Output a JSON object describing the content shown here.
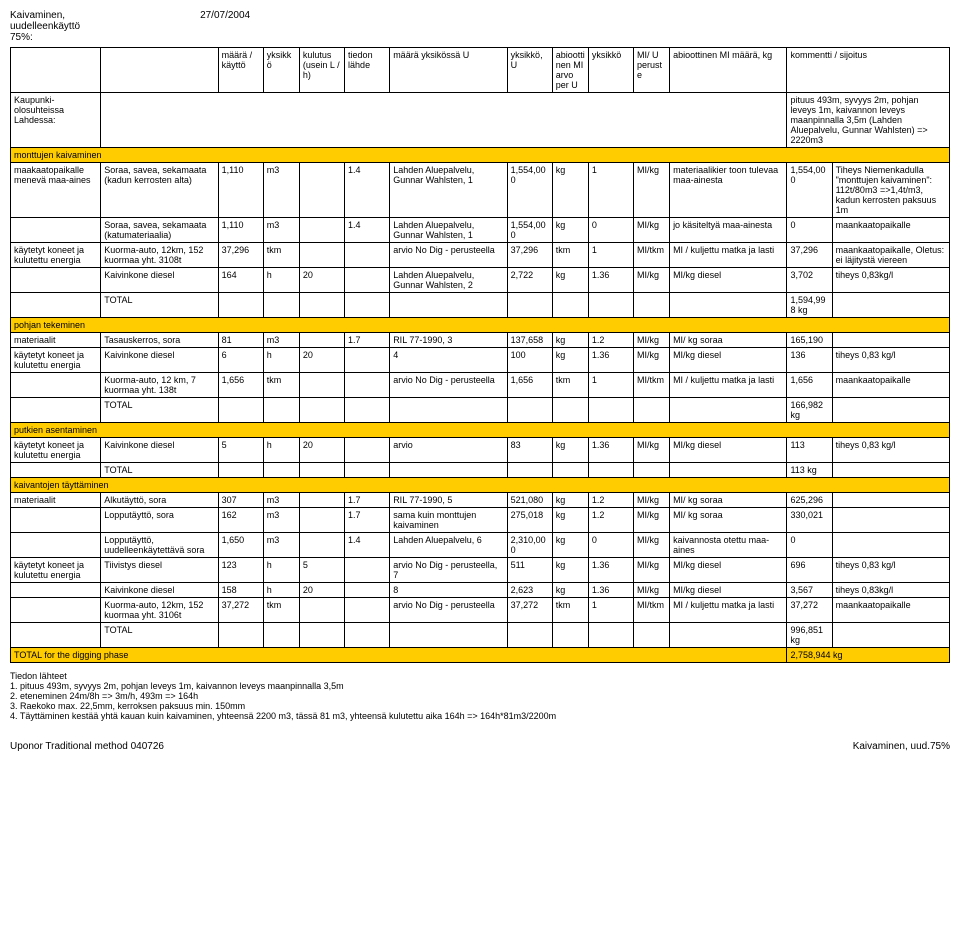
{
  "header": {
    "title_line1": "Kaivaminen,",
    "title_line2": "uudelleenkäyttö",
    "title_line3": "75%:",
    "date": "27/07/2004",
    "subtitle_line1": "Kaupunki-",
    "subtitle_line2": "olosuhteissa",
    "subtitle_line3": "Lahdessa:"
  },
  "columns": [
    "",
    "",
    "määrä / käyttö",
    "yksikkö",
    "kulutus (usein L / h)",
    "tiedon lähde",
    "määrä yksikössä U",
    "yksikkö, U",
    "abioottinen MI arvo per U",
    "yksikkö",
    "MI/ U peruste",
    "abioottinen MI määrä, kg",
    "kommentti / sijoitus"
  ],
  "top_comment": "pituus 493m, syvyys 2m, pohjan leveys 1m, kaivannon leveys maanpinnalla 3,5m (Lahden Aluepalvelu, Gunnar Wahlsten) => 2220m3",
  "sections": [
    {
      "type": "section",
      "label": "monttujen kaivaminen"
    },
    {
      "type": "row",
      "cells": [
        "maakaatopaikalle menevä maa-aines",
        "Soraa, savea, sekamaata (kadun kerrosten alta)",
        "1,110",
        "m3",
        "",
        "1.4",
        "Lahden Aluepalvelu, Gunnar Wahlsten, 1",
        "1,554,000",
        "kg",
        "1",
        "MI/kg",
        "materiaalikier toon tulevaa maa-ainesta",
        "1,554,000",
        "Tiheys Niemenkadulla \"monttujen kaivaminen\": 112t/80m3 =>1,4t/m3, kadun kerrosten paksuus 1m"
      ]
    },
    {
      "type": "row",
      "cells": [
        "",
        "Soraa, savea, sekamaata (katumateriaalia)",
        "1,110",
        "m3",
        "",
        "1.4",
        "Lahden Aluepalvelu, Gunnar Wahlsten, 1",
        "1,554,000",
        "kg",
        "0",
        "MI/kg",
        "jo käsiteltyä maa-ainesta",
        "0",
        "maankaatopaikalle"
      ]
    },
    {
      "type": "row",
      "cells": [
        "käytetyt koneet ja kulutettu energia",
        "Kuorma-auto, 12km, 152 kuormaa yht. 3108t",
        "37,296",
        "tkm",
        "",
        "",
        "arvio No Dig - perusteella",
        "37,296",
        "tkm",
        "1",
        "MI/tkm",
        "MI / kuljettu matka ja lasti",
        "37,296",
        "maankaatopaikalle, Oletus: ei läjitystä viereen"
      ]
    },
    {
      "type": "row",
      "cells": [
        "",
        "Kaivinkone diesel",
        "164",
        "h",
        "20",
        "",
        "Lahden Aluepalvelu, Gunnar Wahlsten, 2",
        "2,722",
        "kg",
        "1.36",
        "MI/kg",
        "MI/kg diesel",
        "3,702",
        "tiheys 0,83kg/l"
      ]
    },
    {
      "type": "total",
      "cells": [
        "",
        "TOTAL",
        "",
        "",
        "",
        "",
        "",
        "",
        "",
        "",
        "",
        "",
        "1,594,998 kg",
        ""
      ]
    },
    {
      "type": "section",
      "label": "pohjan tekeminen"
    },
    {
      "type": "row",
      "cells": [
        "materiaalit",
        "Tasauskerros, sora",
        "81",
        "m3",
        "",
        "1.7",
        "RIL 77-1990, 3",
        "137,658",
        "kg",
        "1.2",
        "MI/kg",
        "MI/ kg soraa",
        "165,190",
        ""
      ]
    },
    {
      "type": "row",
      "cells": [
        "käytetyt koneet ja kulutettu energia",
        "Kaivinkone diesel",
        "6",
        "h",
        "20",
        "",
        "4",
        "100",
        "kg",
        "1.36",
        "MI/kg",
        "MI/kg diesel",
        "136",
        "tiheys 0,83 kg/l"
      ]
    },
    {
      "type": "row",
      "cells": [
        "",
        "Kuorma-auto, 12 km, 7 kuormaa yht. 138t",
        "1,656",
        "tkm",
        "",
        "",
        "arvio No Dig - perusteella",
        "1,656",
        "tkm",
        "1",
        "MI/tkm",
        "MI / kuljettu matka ja lasti",
        "1,656",
        "maankaatopaikalle"
      ]
    },
    {
      "type": "total",
      "cells": [
        "",
        "TOTAL",
        "",
        "",
        "",
        "",
        "",
        "",
        "",
        "",
        "",
        "",
        "166,982 kg",
        ""
      ]
    },
    {
      "type": "section",
      "label": "putkien asentaminen"
    },
    {
      "type": "row",
      "cells": [
        "käytetyt koneet ja kulutettu energia",
        "Kaivinkone diesel",
        "5",
        "h",
        "20",
        "",
        "arvio",
        "83",
        "kg",
        "1.36",
        "MI/kg",
        "MI/kg diesel",
        "113",
        "tiheys 0,83 kg/l"
      ]
    },
    {
      "type": "total",
      "cells": [
        "",
        "TOTAL",
        "",
        "",
        "",
        "",
        "",
        "",
        "",
        "",
        "",
        "",
        "113 kg",
        ""
      ]
    },
    {
      "type": "section",
      "label": "kaivantojen täyttäminen"
    },
    {
      "type": "row",
      "cells": [
        "materiaalit",
        "Alkutäyttö, sora",
        "307",
        "m3",
        "",
        "1.7",
        "RIL 77-1990, 5",
        "521,080",
        "kg",
        "1.2",
        "MI/kg",
        "MI/ kg soraa",
        "625,296",
        ""
      ]
    },
    {
      "type": "row",
      "cells": [
        "",
        "Lopputäyttö, sora",
        "162",
        "m3",
        "",
        "1.7",
        "sama kuin monttujen kaivaminen",
        "275,018",
        "kg",
        "1.2",
        "MI/kg",
        "MI/ kg soraa",
        "330,021",
        ""
      ]
    },
    {
      "type": "row",
      "cells": [
        "",
        "Lopputäyttö, uudelleenkäytettävä sora",
        "1,650",
        "m3",
        "",
        "1.4",
        "Lahden Aluepalvelu, 6",
        "2,310,000",
        "kg",
        "0",
        "MI/kg",
        "kaivannosta otettu maa-aines",
        "0",
        ""
      ]
    },
    {
      "type": "row",
      "cells": [
        "käytetyt koneet ja kulutettu energia",
        "Tiivistys diesel",
        "123",
        "h",
        "5",
        "",
        "arvio No Dig - perusteella, 7",
        "511",
        "kg",
        "1.36",
        "MI/kg",
        "MI/kg diesel",
        "696",
        "tiheys 0,83 kg/l"
      ]
    },
    {
      "type": "row",
      "cells": [
        "",
        "Kaivinkone diesel",
        "158",
        "h",
        "20",
        "",
        "8",
        "2,623",
        "kg",
        "1.36",
        "MI/kg",
        "MI/kg diesel",
        "3,567",
        "tiheys 0,83kg/l"
      ]
    },
    {
      "type": "row",
      "cells": [
        "",
        "Kuorma-auto, 12km, 152 kuormaa yht. 3106t",
        "37,272",
        "tkm",
        "",
        "",
        "arvio No Dig - perusteella",
        "37,272",
        "tkm",
        "1",
        "MI/tkm",
        "MI / kuljettu matka ja lasti",
        "37,272",
        "maankaatopaikalle"
      ]
    },
    {
      "type": "total",
      "cells": [
        "",
        "TOTAL",
        "",
        "",
        "",
        "",
        "",
        "",
        "",
        "",
        "",
        "",
        "996,851 kg",
        ""
      ]
    },
    {
      "type": "grand",
      "cells": [
        "TOTAL for the digging phase",
        "",
        "",
        "",
        "",
        "",
        "",
        "",
        "",
        "",
        "",
        "",
        "2,758,944 kg",
        ""
      ]
    }
  ],
  "notes": {
    "title": "Tiedon lähteet",
    "items": [
      "1. pituus 493m, syvyys 2m, pohjan leveys 1m, kaivannon leveys maanpinnalla 3,5m",
      "2. eteneminen 24m/8h => 3m/h, 493m => 164h",
      "3. Raekoko max. 22,5mm, kerroksen paksuus min. 150mm",
      "4. Täyttäminen kestää yhtä kauan kuin kaivaminen, yhteensä 2200 m3, tässä 81 m3, yhteensä kulutettu aika 164h => 164h*81m3/2200m"
    ]
  },
  "footer": {
    "left": "Uponor Traditional method 040726",
    "right": "Kaivaminen, uud.75%"
  },
  "colors": {
    "highlight": "#ffcc00",
    "border": "#000000",
    "bg": "#ffffff"
  }
}
